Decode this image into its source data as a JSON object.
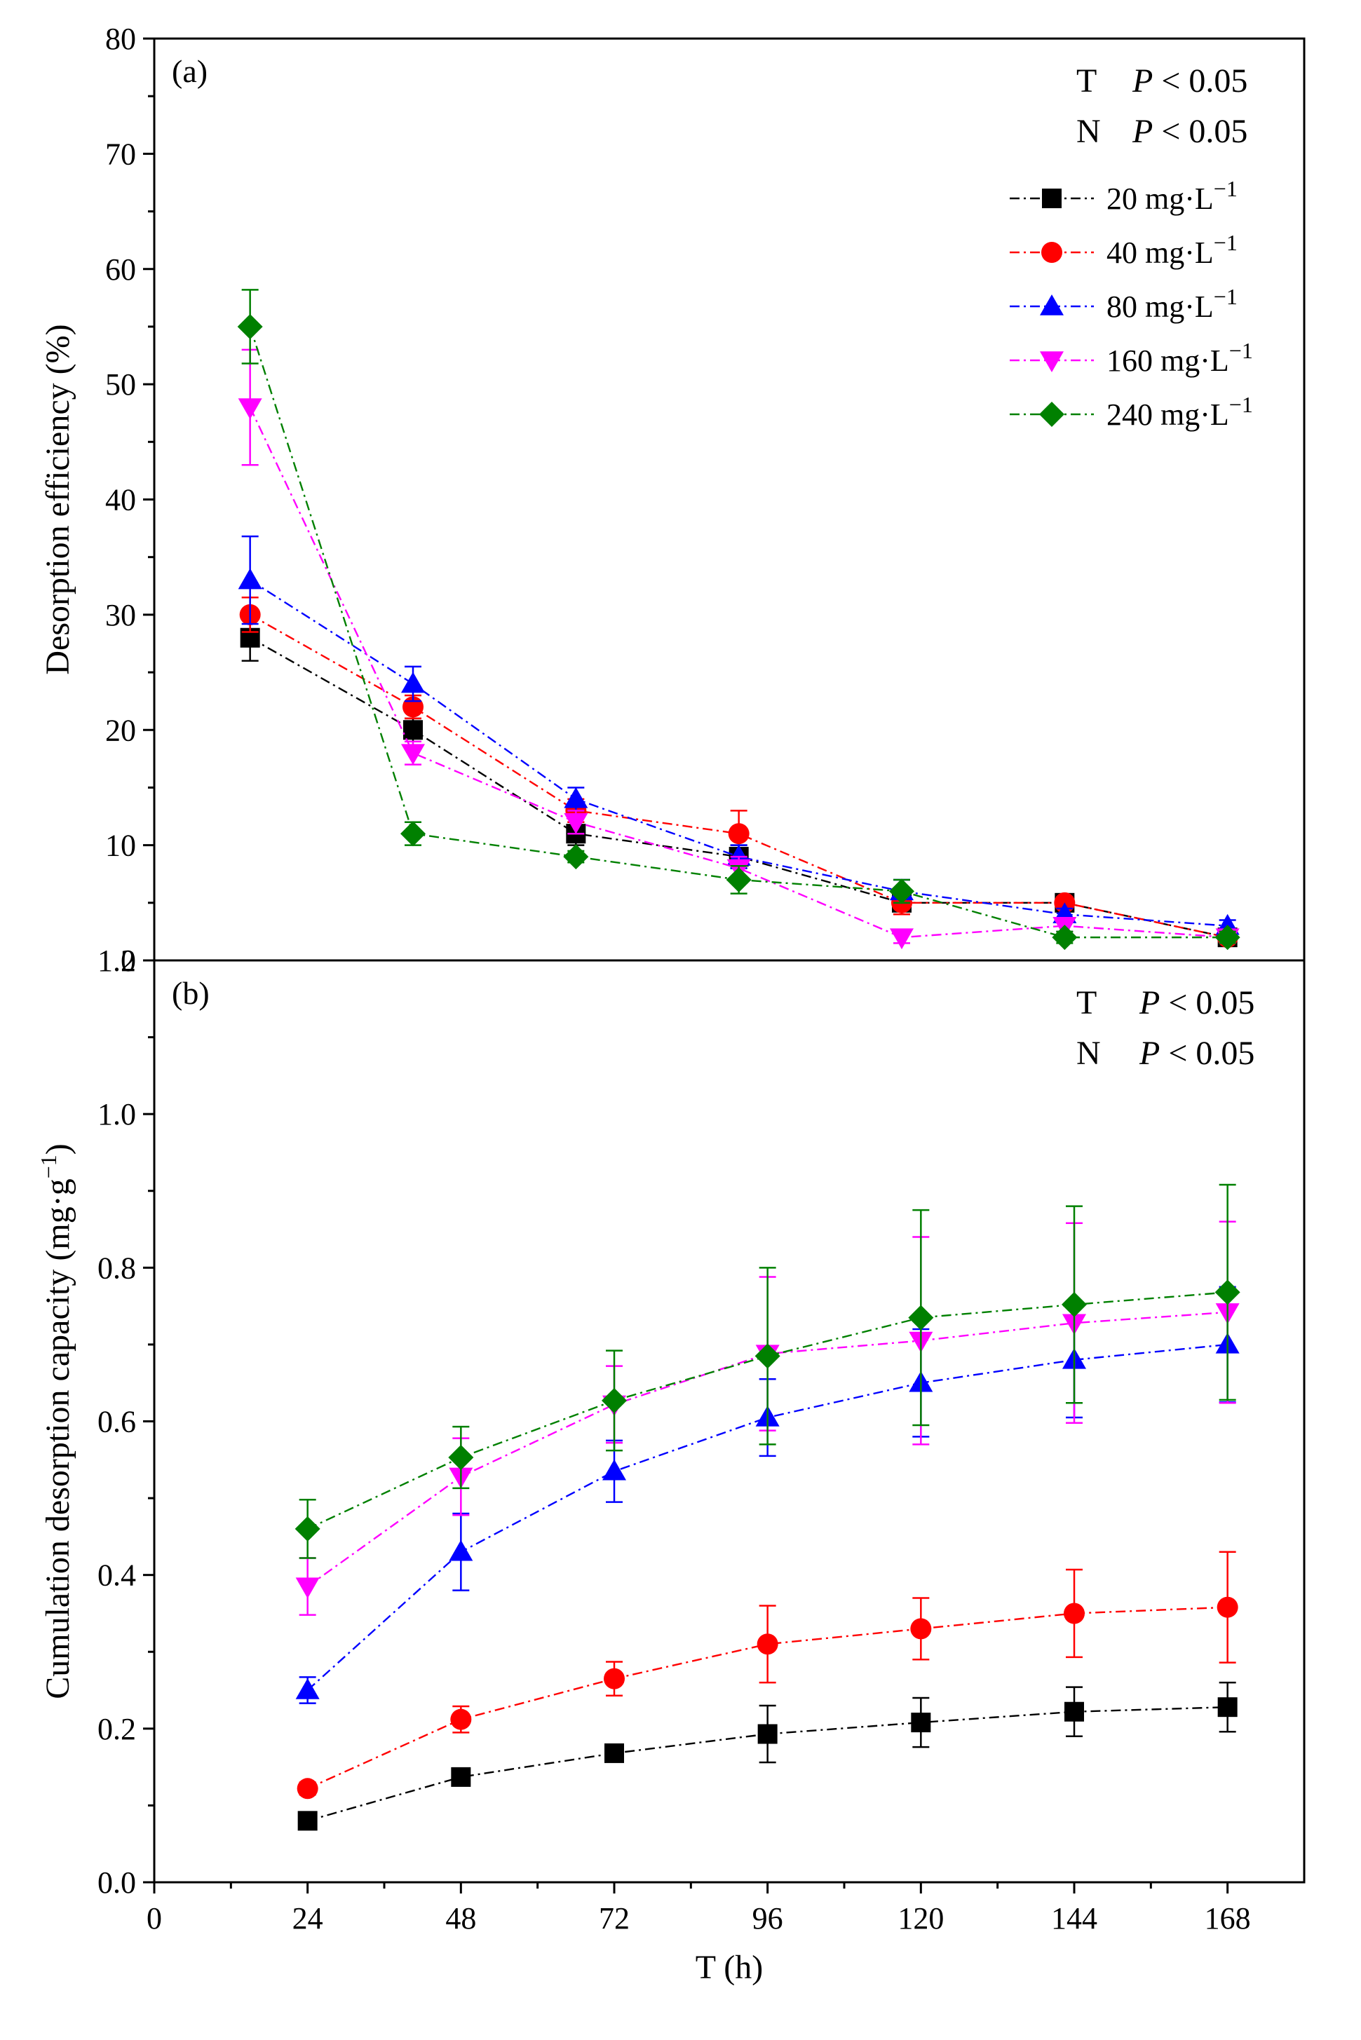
{
  "chart_data": {
    "type": "line",
    "shared_x": {
      "label": "T (h)",
      "ticks": [
        0,
        24,
        48,
        72,
        96,
        120,
        144,
        168
      ],
      "xlim": [
        0,
        180
      ]
    },
    "panels": [
      {
        "id": "a",
        "panel_label": "(a)",
        "ylabel": "Desorption efficiency (%)",
        "ylim": [
          0,
          80
        ],
        "yticks": [
          0,
          10,
          20,
          30,
          40,
          50,
          60,
          70,
          80
        ],
        "stats": [
          {
            "factor": "T",
            "p": "P",
            "op": "<",
            "value": "0.05"
          },
          {
            "factor": "N",
            "p": "P",
            "op": "<",
            "value": "0.05"
          }
        ],
        "x": [
          15,
          40.5,
          66,
          91.5,
          117,
          142.5,
          168
        ],
        "series": [
          {
            "name": "20 mg·L⁻¹",
            "values": [
              28,
              20,
              11,
              9,
              5,
              5,
              2
            ],
            "errors": [
              2,
              1,
              1,
              1,
              1,
              0.5,
              0.5
            ]
          },
          {
            "name": "40 mg·L⁻¹",
            "values": [
              30,
              22,
              13,
              11,
              5,
              5,
              2
            ],
            "errors": [
              1.5,
              1,
              1,
              2,
              1,
              0.5,
              0.5
            ]
          },
          {
            "name": "80 mg·L⁻¹",
            "values": [
              33,
              24,
              14,
              9,
              6,
              4,
              3
            ],
            "errors": [
              3.8,
              1.5,
              1,
              1,
              1,
              0.5,
              0.5
            ]
          },
          {
            "name": "160 mg·L⁻¹",
            "values": [
              48,
              18,
              12,
              8,
              2,
              3,
              2
            ],
            "errors": [
              5,
              1,
              1,
              1,
              0.5,
              0.5,
              0.5
            ]
          },
          {
            "name": "240 mg·L⁻¹",
            "values": [
              55,
              11,
              9,
              7,
              6,
              2,
              2
            ],
            "errors": [
              3.2,
              1,
              0.5,
              1.2,
              1,
              0.5,
              0.5
            ]
          }
        ]
      },
      {
        "id": "b",
        "panel_label": "(b)",
        "ylabel": "Cumulation desorption capacity (mg·g⁻¹)",
        "ylim": [
          0,
          1.2
        ],
        "yticks": [
          "0.0",
          "0.2",
          "0.4",
          "0.6",
          "0.8",
          "1.0",
          "1.2"
        ],
        "stats": [
          {
            "factor": "T",
            "p": "P",
            "op": "<",
            "value": "0.05"
          },
          {
            "factor": "N",
            "p": "P",
            "op": "<",
            "value": "0.05"
          }
        ],
        "x": [
          24,
          48,
          72,
          96,
          120,
          144,
          168
        ],
        "series": [
          {
            "name": "20 mg·L⁻¹",
            "values": [
              0.08,
              0.137,
              0.168,
              0.193,
              0.208,
              0.222,
              0.228
            ],
            "errors": [
              0.005,
              0.008,
              0.01,
              0.037,
              0.032,
              0.032,
              0.032
            ]
          },
          {
            "name": "40 mg·L⁻¹",
            "values": [
              0.122,
              0.212,
              0.265,
              0.31,
              0.33,
              0.35,
              0.358
            ],
            "errors": [
              0.008,
              0.017,
              0.022,
              0.05,
              0.04,
              0.057,
              0.072
            ]
          },
          {
            "name": "80 mg·L⁻¹",
            "values": [
              0.25,
              0.43,
              0.535,
              0.605,
              0.65,
              0.68,
              0.7
            ],
            "errors": [
              0.017,
              0.05,
              0.04,
              0.05,
              0.07,
              0.075,
              0.075
            ]
          },
          {
            "name": "160 mg·L⁻¹",
            "values": [
              0.385,
              0.528,
              0.622,
              0.688,
              0.705,
              0.728,
              0.742
            ],
            "errors": [
              0.037,
              0.05,
              0.05,
              0.1,
              0.135,
              0.13,
              0.118
            ]
          },
          {
            "name": "240 mg·L⁻¹",
            "values": [
              0.46,
              0.553,
              0.627,
              0.685,
              0.735,
              0.752,
              0.768
            ],
            "errors": [
              0.038,
              0.04,
              0.065,
              0.115,
              0.14,
              0.128,
              0.14
            ]
          }
        ]
      }
    ],
    "legend": {
      "placement": "top-right of panel (a)"
    }
  },
  "styles": {
    "series_colors": [
      "#000000",
      "#ff0000",
      "#0000ff",
      "#ff00ff",
      "#008000"
    ],
    "series_markers": [
      "square",
      "circle",
      "triangle-up",
      "triangle-down",
      "diamond"
    ]
  }
}
